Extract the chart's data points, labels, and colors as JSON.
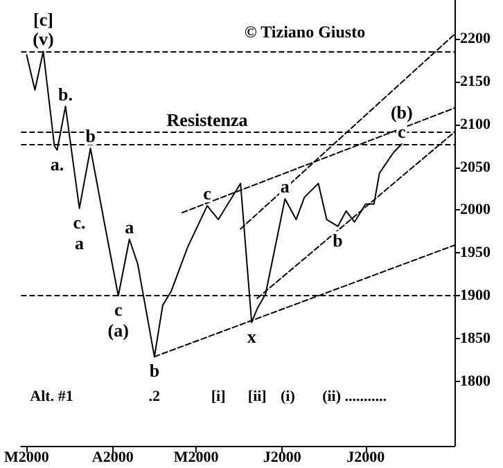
{
  "chart_data": {
    "type": "line",
    "subtitle": "© Tiziano Giusto",
    "xlim": [
      "2000-02-28",
      "2000-08-02"
    ],
    "xticks": [
      {
        "value": "2000-03-01",
        "label": "M2000"
      },
      {
        "value": "2000-04-01",
        "label": "A2000"
      },
      {
        "value": "2000-05-01",
        "label": "M2000"
      },
      {
        "value": "2000-06-01",
        "label": "J2000"
      },
      {
        "value": "2000-07-01",
        "label": "J2000"
      }
    ],
    "ylim": [
      1725,
      2245
    ],
    "yticks": [
      1800,
      1850,
      1900,
      1950,
      2000,
      2050,
      2100,
      2150,
      2200
    ],
    "grid": false,
    "marker": "none",
    "line_style": "solid",
    "series": [
      {
        "color": "#000000",
        "x": [
          "2000-03-01",
          "2000-03-04",
          "2000-03-07",
          "2000-03-11",
          "2000-03-12",
          "2000-03-15",
          "2000-03-20",
          "2000-03-24",
          "2000-03-29",
          "2000-04-03",
          "2000-04-07",
          "2000-04-10",
          "2000-04-16",
          "2000-04-19",
          "2000-04-22",
          "2000-04-28",
          "2000-05-05",
          "2000-05-09",
          "2000-05-17",
          "2000-05-21",
          "2000-05-23",
          "2000-05-26",
          "2000-06-02",
          "2000-06-06",
          "2000-06-09",
          "2000-06-14",
          "2000-06-17",
          "2000-06-21",
          "2000-06-24",
          "2000-06-27",
          "2000-07-01",
          "2000-07-04",
          "2000-07-06",
          "2000-07-11",
          "2000-07-14"
        ],
        "values": [
          2181,
          2140,
          2185,
          2075,
          2070,
          2121,
          2002,
          2072,
          1985,
          1900,
          1966,
          1937,
          1829,
          1889,
          1905,
          1957,
          2005,
          1989,
          2031,
          1869,
          1885,
          1902,
          2013,
          1989,
          2015,
          2031,
          1989,
          1981,
          1999,
          1986,
          2007,
          2007,
          2043,
          2067,
          2077
        ]
      },
      {
        "color": "#000000",
        "line_style": "dashed",
        "x": [
          "2000-04-16",
          "2000-08-02"
        ],
        "values": [
          1829,
          1959
        ]
      },
      {
        "color": "#000000",
        "line_style": "dashed",
        "x": [
          "2000-04-26",
          "2000-08-02"
        ],
        "values": [
          1997,
          2119
        ]
      },
      {
        "color": "#000000",
        "line_style": "dashed",
        "x": [
          "2000-05-17",
          "2000-08-02"
        ],
        "values": [
          1978,
          2205
        ]
      },
      {
        "color": "#000000",
        "line_style": "dashed",
        "x": [
          "2000-05-23",
          "2000-08-02"
        ],
        "values": [
          1897,
          2091
        ]
      }
    ],
    "ref_lines": [
      {
        "axis": "y",
        "value": 2185,
        "line_style": "dashed",
        "color": "#000000"
      },
      {
        "axis": "y",
        "value": 2091,
        "line_style": "dashed",
        "color": "#000000"
      },
      {
        "axis": "y",
        "value": 2077,
        "line_style": "dashed",
        "color": "#000000"
      },
      {
        "axis": "y",
        "value": 1900,
        "line_style": "dashed",
        "color": "#000000"
      }
    ],
    "x2lim": [
      "2000-02-28",
      "2000-08-02"
    ],
    "x2ticks": [
      {
        "value": "2000-03-10",
        "label": "Alt. #1"
      },
      {
        "value": "2000-04-16",
        "label": ".2"
      },
      {
        "value": "2000-05-09",
        "label": "[i]"
      },
      {
        "value": "2000-05-23",
        "label": "[ii]"
      },
      {
        "value": "2000-06-03",
        "label": "(i)"
      },
      {
        "value": "2000-06-27",
        "label": "(ii) ..........."
      }
    ],
    "annotations": [
      {
        "text": "(v)",
        "x": "2000-03-07",
        "y": 2185
      },
      {
        "text": "[c]",
        "x": "2000-03-07",
        "y": 2185
      },
      {
        "text": "b.",
        "x": "2000-03-15",
        "y": 2121
      },
      {
        "text": "a.",
        "x": "2000-03-12",
        "y": 2070
      },
      {
        "text": "c.",
        "x": "2000-03-20",
        "y": 2002
      },
      {
        "text": "a",
        "x": "2000-03-20",
        "y": 2002
      },
      {
        "text": "b",
        "x": "2000-03-24",
        "y": 2072
      },
      {
        "text": "a",
        "x": "2000-04-07",
        "y": 1966
      },
      {
        "text": "c",
        "x": "2000-04-03",
        "y": 1900
      },
      {
        "text": "(a)",
        "x": "2000-04-03",
        "y": 1900
      },
      {
        "text": "b",
        "x": "2000-04-16",
        "y": 1829
      },
      {
        "text": "c",
        "x": "2000-05-05",
        "y": 2005
      },
      {
        "text": "x",
        "x": "2000-05-21",
        "y": 1869
      },
      {
        "text": "a",
        "x": "2000-06-02",
        "y": 2013
      },
      {
        "text": "b",
        "x": "2000-06-21",
        "y": 1981
      },
      {
        "text": "c",
        "x": "2000-07-14",
        "y": 2077
      },
      {
        "text": "(b)",
        "x": "2000-07-14",
        "y": 2077
      },
      {
        "text": "Resistenza",
        "x": "2000-05-05",
        "y": 2091
      }
    ]
  }
}
